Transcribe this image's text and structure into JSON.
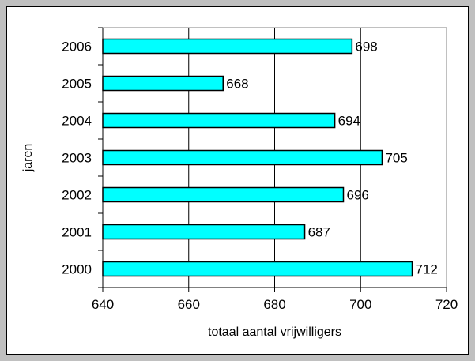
{
  "chart_data": {
    "type": "bar",
    "orientation": "horizontal",
    "categories": [
      "2006",
      "2005",
      "2004",
      "2003",
      "2002",
      "2001",
      "2000"
    ],
    "values": [
      698,
      668,
      694,
      705,
      696,
      687,
      712
    ],
    "title": "",
    "xlabel": "totaal aantal vrijwilligers",
    "ylabel": "jaren",
    "xlim": [
      640,
      720
    ],
    "xticks": [
      640,
      660,
      680,
      700,
      720
    ],
    "grid": "vertical",
    "legend": "none",
    "colors": {
      "bar": "#00ffff",
      "bar_border": "#000000",
      "background": "#c0c0c0",
      "plot": "#ffffff"
    }
  }
}
